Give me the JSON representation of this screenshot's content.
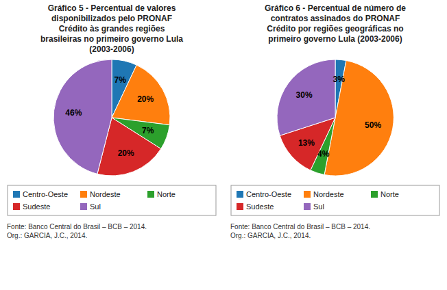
{
  "chart_data": [
    {
      "type": "pie",
      "title": "Gráfico 5 - Percentual de valores\ndisponibilizados pelo PRONAF\nCrédito às grandes regiões\nbrasileiras no primeiro governo Lula\n(2003-2006)",
      "categories": [
        "Centro-Oeste",
        "Nordeste",
        "Norte",
        "Sudeste",
        "Sul"
      ],
      "values": [
        7,
        20,
        7,
        20,
        46
      ],
      "value_labels": [
        "7%",
        "20%",
        "7%",
        "20%",
        "46%"
      ],
      "data_labels": true,
      "legend": "bottom",
      "annotations": [
        "Fonte: Banco Central do Brasil – BCB – 2014.\nOrg.: GARCIA, J.C., 2014."
      ]
    },
    {
      "type": "pie",
      "title": "Gráfico 6 - Percentual de número de\ncontratos assinados do PRONAF\nCrédito por regiões geográficas no\nprimeiro governo Lula (2003-2006)",
      "categories": [
        "Centro-Oeste",
        "Nordeste",
        "Norte",
        "Sudeste",
        "Sul"
      ],
      "values": [
        3,
        50,
        4,
        13,
        30
      ],
      "value_labels": [
        "3%",
        "50%",
        "4%",
        "13%",
        "30%"
      ],
      "data_labels": true,
      "legend": "bottom",
      "annotations": [
        "Fonte: Banco Central do Brasil – BCB – 2014.\nOrg.: GARCIA, J.C., 2014."
      ]
    }
  ]
}
